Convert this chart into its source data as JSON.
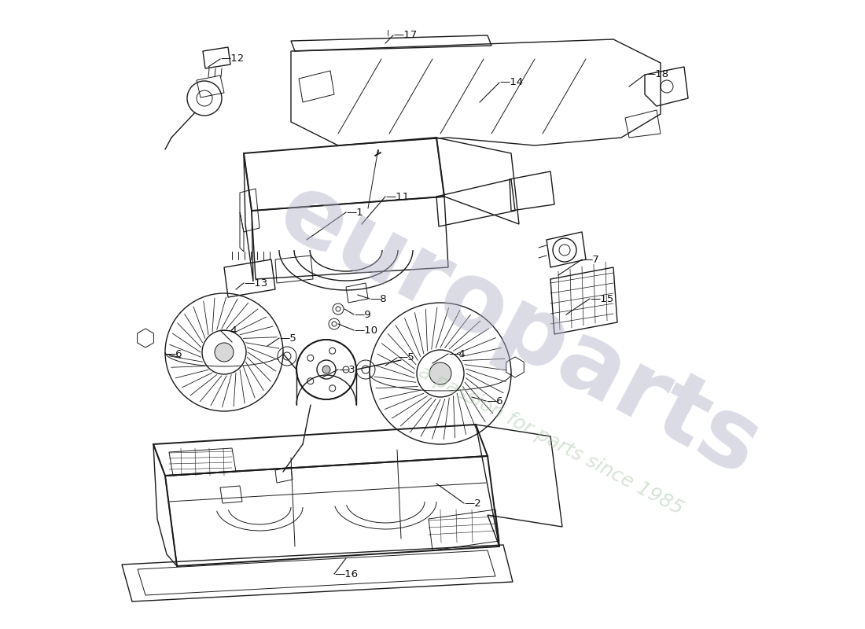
{
  "bg_color": "#ffffff",
  "line_color": "#1a1a1a",
  "lw_thin": 0.7,
  "lw_med": 1.0,
  "lw_thick": 1.4,
  "watermark1": "europarts",
  "watermark2": "a passion for parts since 1985",
  "wm_color1": "#b0b0c8",
  "wm_color2": "#b0c8b0",
  "callouts": [
    [
      "1",
      440,
      270,
      390,
      305
    ],
    [
      "2",
      590,
      640,
      555,
      615
    ],
    [
      "3",
      430,
      470,
      410,
      480
    ],
    [
      "4",
      280,
      420,
      295,
      435
    ],
    [
      "4",
      570,
      450,
      550,
      462
    ],
    [
      "5",
      355,
      430,
      340,
      440
    ],
    [
      "5",
      505,
      455,
      490,
      465
    ],
    [
      "6",
      210,
      450,
      230,
      455
    ],
    [
      "6",
      618,
      510,
      600,
      505
    ],
    [
      "7",
      740,
      330,
      710,
      350
    ],
    [
      "8",
      470,
      380,
      455,
      375
    ],
    [
      "9",
      450,
      400,
      438,
      393
    ],
    [
      "10",
      450,
      420,
      430,
      412
    ],
    [
      "11",
      490,
      250,
      460,
      285
    ],
    [
      "12",
      280,
      75,
      265,
      85
    ],
    [
      "13",
      310,
      360,
      300,
      368
    ],
    [
      "14",
      635,
      105,
      610,
      130
    ],
    [
      "15",
      750,
      380,
      720,
      400
    ],
    [
      "16",
      425,
      730,
      440,
      710
    ],
    [
      "17",
      500,
      45,
      490,
      55
    ],
    [
      "18",
      820,
      95,
      800,
      110
    ]
  ]
}
